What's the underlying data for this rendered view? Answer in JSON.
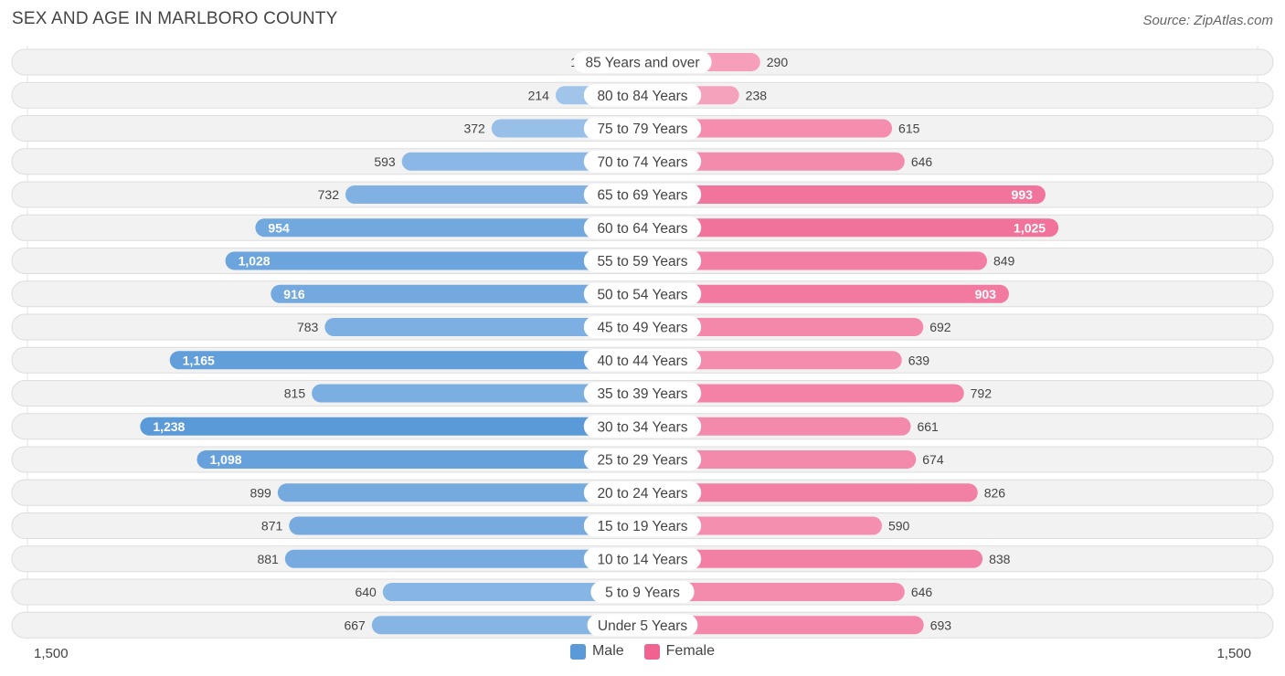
{
  "title": "SEX AND AGE IN MARLBORO COUNTY",
  "source": "Source: ZipAtlas.com",
  "axis": {
    "left_label": "1,500",
    "right_label": "1,500"
  },
  "colors": {
    "male": "#5b9ad9",
    "female": "#f0628f"
  },
  "chart_data": {
    "type": "bar",
    "orientation": "horizontal-diverging",
    "title": "SEX AND AGE IN MARLBORO COUNTY",
    "xlim": [
      -1500,
      1500
    ],
    "legend": {
      "placement": "bottom-center",
      "entries": [
        "Male",
        "Female"
      ]
    },
    "categories": [
      "85 Years and over",
      "80 to 84 Years",
      "75 to 79 Years",
      "70 to 74 Years",
      "65 to 69 Years",
      "60 to 64 Years",
      "55 to 59 Years",
      "50 to 54 Years",
      "45 to 49 Years",
      "40 to 44 Years",
      "35 to 39 Years",
      "30 to 34 Years",
      "25 to 29 Years",
      "20 to 24 Years",
      "15 to 19 Years",
      "10 to 14 Years",
      "5 to 9 Years",
      "Under 5 Years"
    ],
    "series": [
      {
        "name": "Male",
        "values": [
          109,
          214,
          372,
          593,
          732,
          954,
          1028,
          916,
          783,
          1165,
          815,
          1238,
          1098,
          899,
          871,
          881,
          640,
          667
        ],
        "labels": [
          "109",
          "214",
          "372",
          "593",
          "732",
          "954",
          "1,028",
          "916",
          "783",
          "1,165",
          "815",
          "1,238",
          "1,098",
          "899",
          "871",
          "881",
          "640",
          "667"
        ]
      },
      {
        "name": "Female",
        "values": [
          290,
          238,
          615,
          646,
          993,
          1025,
          849,
          903,
          692,
          639,
          792,
          661,
          674,
          826,
          590,
          838,
          646,
          693
        ],
        "labels": [
          "290",
          "238",
          "615",
          "646",
          "993",
          "1,025",
          "849",
          "903",
          "692",
          "639",
          "792",
          "661",
          "674",
          "826",
          "590",
          "838",
          "646",
          "693"
        ]
      }
    ]
  }
}
